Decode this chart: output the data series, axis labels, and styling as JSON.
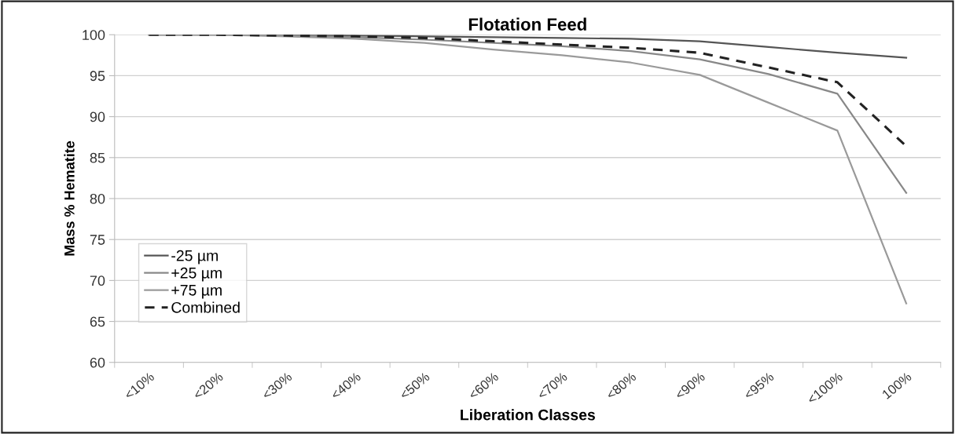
{
  "chart_data": {
    "type": "line",
    "title": "Flotation Feed",
    "xlabel": "Liberation Classes",
    "ylabel": "Mass % Hematite",
    "categories": [
      "<10%",
      "<20%",
      "<30%",
      "<40%",
      "<50%",
      "<60%",
      "<70%",
      "<80%",
      "<90%",
      "<95%",
      "<100%",
      "100%"
    ],
    "series": [
      {
        "name": "-25 µm",
        "color": "#555555",
        "line_style": "solid",
        "values": [
          100,
          100,
          100,
          99.9,
          99.8,
          99.7,
          99.6,
          99.5,
          99.2,
          98.5,
          97.8,
          97.2
        ]
      },
      {
        "name": "+25 µm",
        "color": "#888888",
        "line_style": "solid",
        "values": [
          100,
          100,
          99.9,
          99.7,
          99.4,
          99.0,
          98.6,
          98.0,
          97.0,
          95.2,
          92.8,
          80.7
        ]
      },
      {
        "name": "+75 µm",
        "color": "#9a9a9a",
        "line_style": "solid",
        "values": [
          100,
          100,
          99.8,
          99.5,
          99.0,
          98.2,
          97.5,
          96.6,
          95.1,
          91.7,
          88.3,
          67.2
        ]
      },
      {
        "name": "Combined",
        "color": "#222222",
        "line_style": "dashed",
        "values": [
          100,
          100,
          99.9,
          99.8,
          99.6,
          99.2,
          98.8,
          98.4,
          97.8,
          96.0,
          94.2,
          86.4
        ]
      }
    ],
    "ylim": [
      60,
      100
    ],
    "yticks": [
      60,
      65,
      70,
      75,
      80,
      85,
      90,
      95,
      100
    ],
    "grid": "y",
    "legend": "bottom left",
    "marker": "none"
  }
}
